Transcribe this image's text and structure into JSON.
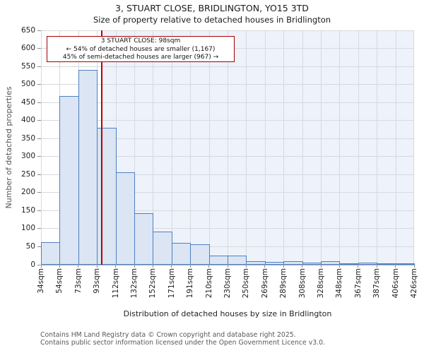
{
  "annotation": {
    "line1": "3 STUART CLOSE: 98sqm",
    "line2": "← 54% of detached houses are smaller (1,167)",
    "line3": "45% of semi-detached houses are larger (967) →"
  },
  "chart_data": {
    "type": "bar",
    "title": "3, STUART CLOSE, BRIDLINGTON, YO15 3TD",
    "subtitle": "Size of property relative to detached houses in Bridlington",
    "xlabel": "Distribution of detached houses by size in Bridlington",
    "ylabel": "Number of detached properties",
    "x_tick_labels": [
      "34sqm",
      "54sqm",
      "73sqm",
      "93sqm",
      "112sqm",
      "132sqm",
      "152sqm",
      "171sqm",
      "191sqm",
      "210sqm",
      "230sqm",
      "250sqm",
      "269sqm",
      "289sqm",
      "308sqm",
      "328sqm",
      "348sqm",
      "367sqm",
      "387sqm",
      "406sqm",
      "426sqm"
    ],
    "bin_edges_sqm": [
      34,
      54,
      73,
      93,
      112,
      132,
      152,
      171,
      191,
      210,
      230,
      250,
      269,
      289,
      308,
      328,
      348,
      367,
      387,
      406,
      426
    ],
    "values": [
      62,
      468,
      540,
      380,
      257,
      143,
      92,
      60,
      57,
      25,
      25,
      10,
      8,
      10,
      6,
      9,
      4,
      6,
      2,
      3
    ],
    "ylim": [
      0,
      650
    ],
    "ytick_step": 50,
    "marker_sqm": 98,
    "grid": true,
    "colors": {
      "bar_fill": "#dbe5f4",
      "bar_border": "#4e80c0",
      "marker_line": "#c00000",
      "annotation_border": "#a40000",
      "shade_right_of_marker": "#eef2fb",
      "gridline": "#d6d9e0",
      "axis_line": "#aeaeb4"
    }
  },
  "footer": {
    "line1": "Contains HM Land Registry data © Crown copyright and database right 2025.",
    "line2": "Contains public sector information licensed under the Open Government Licence v3.0."
  }
}
